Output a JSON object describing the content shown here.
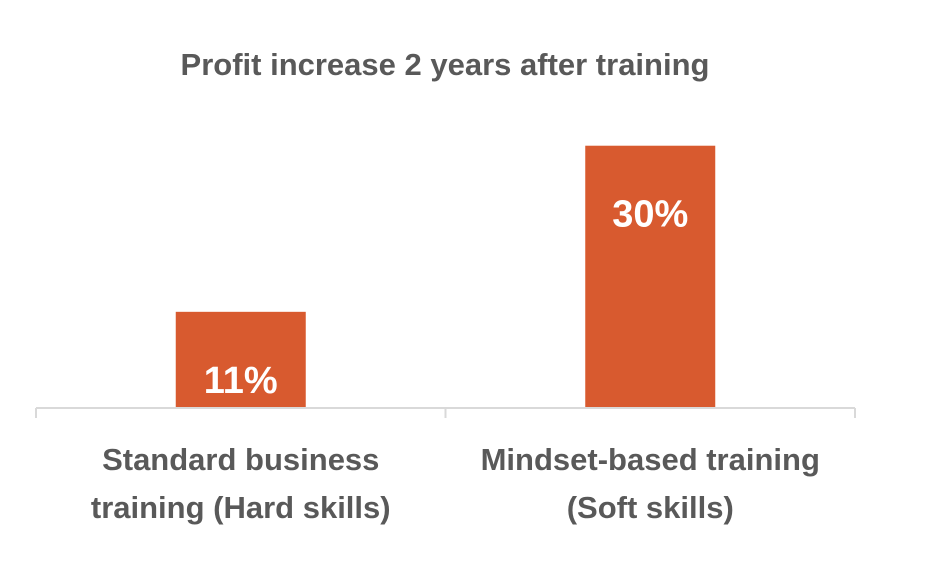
{
  "chart_data": {
    "type": "bar",
    "title": "Profit increase 2 years after training",
    "categories": [
      [
        "Standard business",
        "training (Hard skills)"
      ],
      [
        "Mindset-based training",
        "(Soft skills)"
      ]
    ],
    "values": [
      11,
      30
    ],
    "data_labels": [
      "11%",
      "30%"
    ],
    "ylim": [
      0,
      35
    ],
    "grid": false,
    "legend": "none",
    "colors": {
      "bar": "#D85A2F",
      "text": "#595959",
      "axis": "#D9D9D9",
      "data_label": "#FFFFFF"
    }
  }
}
